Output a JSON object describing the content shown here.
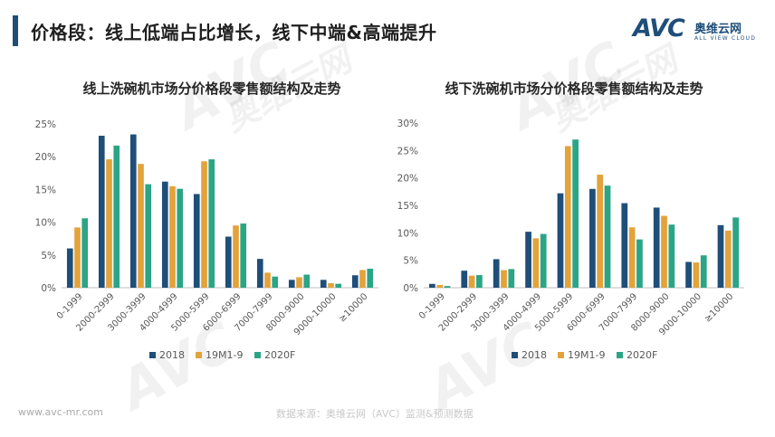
{
  "slide": {
    "title": "价格段：线上低端占比增长，线下中端&高端提升",
    "footer_url": "www.avc-mr.com",
    "footer_source": "数据来源：奥维云网（AVC）监测&预测数据"
  },
  "logo": {
    "mark": "AVC",
    "cn": "奥维云网",
    "en": "ALL VIEW CLOUD",
    "color": "#1f4e79"
  },
  "watermark": {
    "mark": "AVC",
    "cn": "奥维云网",
    "en": "ALL VIEW CLOUD"
  },
  "colors": {
    "accent": "#1f4e79",
    "s2018": "#1f4e79",
    "s19": "#e3a33b",
    "s2020": "#2ba585"
  },
  "chart_data": [
    {
      "type": "bar",
      "title": "线上洗碗机市场分价格段零售额结构及走势",
      "categories": [
        "0-1999",
        "2000-2999",
        "3000-3999",
        "4000-4999",
        "5000-5999",
        "6000-6999",
        "7000-7999",
        "8000-9000",
        "9000-10000",
        "≥10000"
      ],
      "series": [
        {
          "name": "2018",
          "values": [
            6.0,
            23.2,
            23.4,
            16.2,
            14.3,
            7.8,
            4.4,
            1.2,
            1.2,
            1.9
          ]
        },
        {
          "name": "19M1-9",
          "values": [
            9.2,
            19.6,
            18.9,
            15.5,
            19.3,
            9.5,
            2.3,
            1.6,
            0.7,
            2.7
          ]
        },
        {
          "name": "2020F",
          "values": [
            10.6,
            21.7,
            15.8,
            15.1,
            19.6,
            9.8,
            1.7,
            2.0,
            0.6,
            2.9
          ]
        }
      ],
      "yticks": [
        "0%",
        "5%",
        "10%",
        "15%",
        "20%",
        "25%"
      ],
      "ylim": [
        0,
        25
      ],
      "grid": false,
      "legend": "bottom"
    },
    {
      "type": "bar",
      "title": "线下洗碗机市场分价格段零售额结构及走势",
      "categories": [
        "0-1999",
        "2000-2999",
        "3000-3999",
        "4000-4999",
        "5000-5999",
        "6000-6999",
        "7000-7999",
        "8000-9000",
        "9000-10000",
        "≥10000"
      ],
      "series": [
        {
          "name": "2018",
          "values": [
            0.7,
            3.1,
            5.2,
            10.2,
            17.2,
            18.0,
            15.4,
            14.6,
            4.7,
            11.4
          ]
        },
        {
          "name": "19M1-9",
          "values": [
            0.5,
            2.2,
            3.2,
            9.0,
            25.8,
            20.6,
            11.0,
            13.1,
            4.6,
            10.4
          ]
        },
        {
          "name": "2020F",
          "values": [
            0.3,
            2.3,
            3.4,
            9.8,
            27.0,
            18.6,
            8.8,
            11.5,
            5.9,
            12.8
          ]
        }
      ],
      "yticks": [
        "0%",
        "5%",
        "10%",
        "15%",
        "20%",
        "25%",
        "30%"
      ],
      "ylim": [
        0,
        30
      ],
      "grid": false,
      "legend": "bottom"
    }
  ]
}
